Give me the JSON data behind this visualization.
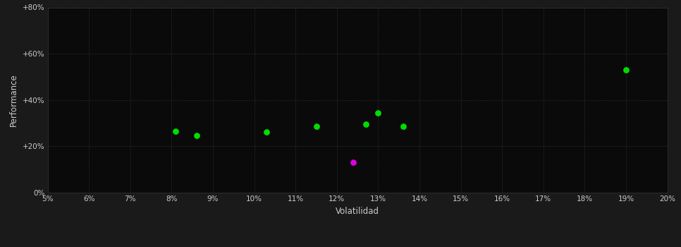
{
  "background_color": "#1a1a1a",
  "plot_bg_color": "#0a0a0a",
  "grid_color": "#3a3a3a",
  "xlabel": "Volatilidad",
  "ylabel": "Performance",
  "xlim": [
    0.05,
    0.2
  ],
  "ylim": [
    0.0,
    0.8
  ],
  "xticks": [
    0.05,
    0.06,
    0.07,
    0.08,
    0.09,
    0.1,
    0.11,
    0.12,
    0.13,
    0.14,
    0.15,
    0.16,
    0.17,
    0.18,
    0.19,
    0.2
  ],
  "yticks": [
    0.0,
    0.2,
    0.4,
    0.6,
    0.8
  ],
  "green_points": [
    [
      0.081,
      0.265
    ],
    [
      0.086,
      0.248
    ],
    [
      0.103,
      0.262
    ],
    [
      0.115,
      0.285
    ],
    [
      0.127,
      0.295
    ],
    [
      0.13,
      0.345
    ],
    [
      0.136,
      0.285
    ],
    [
      0.19,
      0.53
    ]
  ],
  "magenta_points": [
    [
      0.124,
      0.13
    ]
  ],
  "green_color": "#00dd00",
  "magenta_color": "#dd00dd",
  "marker_size": 40
}
